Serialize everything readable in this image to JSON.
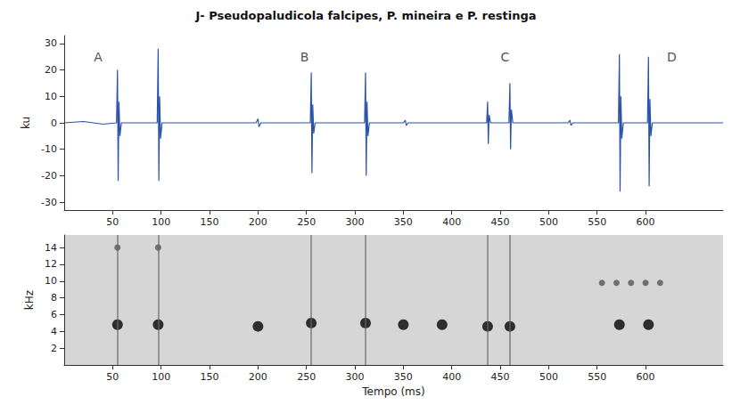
{
  "chart_data": [
    {
      "type": "line",
      "title": "J- Pseudopaludicola falcipes, P. mineira e P. restinga",
      "ylabel": "ku",
      "color": "#2a52a8",
      "x": [
        0,
        20,
        40,
        54,
        55,
        55.7,
        56.5,
        57.5,
        59,
        96,
        97,
        97.7,
        98.5,
        99.5,
        101,
        150,
        198,
        200,
        201,
        203,
        254,
        255,
        255.7,
        256.5,
        257.5,
        259,
        310,
        311,
        311.7,
        312.5,
        313.5,
        315,
        350,
        352,
        353,
        355,
        436,
        437,
        437.7,
        438.5,
        440,
        459,
        460,
        460.7,
        461.5,
        463,
        520,
        522,
        523,
        525,
        572,
        573,
        573.7,
        574.5,
        575.5,
        577,
        602,
        603,
        603.7,
        604.5,
        605.5,
        607,
        680
      ],
      "values": [
        0,
        0.5,
        -0.5,
        0,
        20,
        -22,
        8,
        -5,
        0,
        0,
        28,
        -22,
        10,
        -6,
        0,
        0,
        0,
        1.5,
        -1.5,
        0,
        0,
        19,
        -19,
        7,
        -4,
        0,
        0,
        19,
        -20,
        8,
        -5,
        0,
        0,
        1,
        -1,
        0,
        0,
        8,
        -8,
        3,
        0,
        0,
        15,
        -10,
        5,
        0,
        0,
        1,
        -1,
        0,
        0,
        26,
        -26,
        10,
        -6,
        0,
        0,
        25,
        -24,
        9,
        -5,
        0,
        0
      ],
      "xlim": [
        0,
        680
      ],
      "xticks": [
        50,
        100,
        150,
        200,
        250,
        300,
        350,
        400,
        450,
        500,
        550,
        600
      ],
      "ylim": [
        -33,
        33
      ],
      "yticks": [
        -30,
        -20,
        -10,
        0,
        10,
        20,
        30
      ],
      "annotations": [
        {
          "text": "A",
          "x": 35,
          "y": 25
        },
        {
          "text": "B",
          "x": 248,
          "y": 25
        },
        {
          "text": "C",
          "x": 455,
          "y": 25
        },
        {
          "text": "D",
          "x": 627,
          "y": 25
        }
      ],
      "grid": false
    },
    {
      "type": "scatter",
      "xlabel": "Tempo (ms)",
      "ylabel": "kHz",
      "series": [
        {
          "color": "#111111",
          "values": [
            [
              55,
              4.8
            ],
            [
              97,
              4.8
            ],
            [
              200,
              4.6
            ],
            [
              255,
              5
            ],
            [
              311,
              5
            ],
            [
              350,
              4.8
            ],
            [
              390,
              4.8
            ],
            [
              437,
              4.6
            ],
            [
              460,
              4.6
            ],
            [
              573,
              4.8
            ],
            [
              603,
              4.8
            ]
          ]
        },
        {
          "color": "#444444",
          "values": [
            [
              55,
              14
            ],
            [
              97,
              14
            ],
            [
              555,
              9.8
            ],
            [
              570,
              9.8
            ],
            [
              585,
              9.8
            ],
            [
              600,
              9.8
            ],
            [
              615,
              9.8
            ]
          ]
        }
      ],
      "vlines": {
        "x": [
          55,
          97,
          255,
          311,
          437,
          460
        ],
        "color": "#666666"
      },
      "xlim": [
        0,
        680
      ],
      "xticks": [
        50,
        100,
        150,
        200,
        250,
        300,
        350,
        400,
        450,
        500,
        550,
        600
      ],
      "ylim": [
        0,
        15.5
      ],
      "yticks": [
        2,
        4,
        6,
        8,
        10,
        12,
        14
      ],
      "grid": false
    }
  ]
}
